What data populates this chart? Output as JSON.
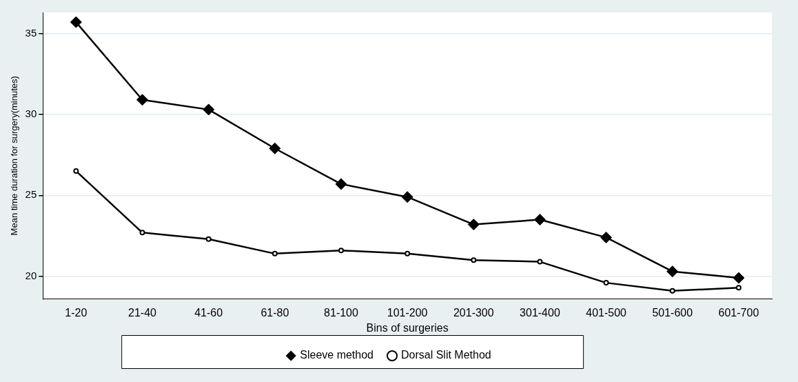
{
  "chart_data": {
    "type": "line",
    "xlabel": "Bins of surgeries",
    "ylabel": "Mean time duration for surgery(minutes)",
    "categories": [
      "1-20",
      "21-40",
      "41-60",
      "61-80",
      "81-100",
      "101-200",
      "201-300",
      "301-400",
      "401-500",
      "501-600",
      "601-700"
    ],
    "series": [
      {
        "name": "Sleeve method",
        "color": "#000000",
        "marker": "diamond",
        "values": [
          35.7,
          30.9,
          30.3,
          27.9,
          25.7,
          24.9,
          23.2,
          23.5,
          22.4,
          20.3,
          19.9
        ]
      },
      {
        "name": "Dorsal Slit Method",
        "color": "#000000",
        "marker": "circle",
        "values": [
          26.5,
          22.7,
          22.3,
          21.4,
          21.6,
          21.4,
          21.0,
          20.9,
          19.6,
          19.1,
          19.3
        ]
      }
    ],
    "ylim": [
      18.6,
      36.3
    ],
    "yticks": [
      20,
      25,
      30,
      35
    ],
    "grid": "y",
    "legend": "bottom",
    "line_style": "solid"
  }
}
